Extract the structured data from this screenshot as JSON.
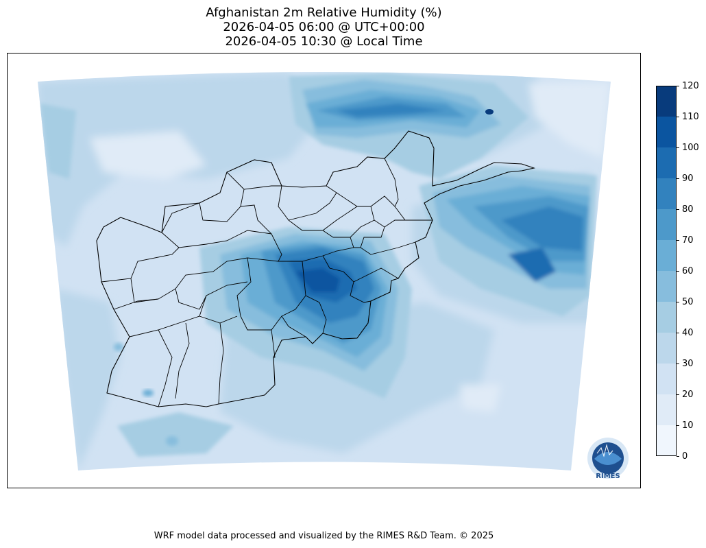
{
  "title": {
    "line1": "Afghanistan 2m Relative Humidity (%)",
    "line2": "2026-04-05 06:00 @ UTC+00:00",
    "line3": "2026-04-05 10:30 @ Local Time"
  },
  "map": {
    "region": "Afghanistan",
    "variable": "2m Relative Humidity",
    "unit": "%",
    "colormap": "Blues",
    "features": [
      "province-boundaries",
      "filled-humidity-contours"
    ]
  },
  "colorbar": {
    "min": 0,
    "max": 120,
    "ticks": [
      "0",
      "10",
      "20",
      "30",
      "40",
      "50",
      "60",
      "70",
      "80",
      "90",
      "100",
      "110",
      "120"
    ],
    "colors": [
      "#f0f6fd",
      "#e0ebf7",
      "#d1e2f3",
      "#bcd7eb",
      "#a6cde3",
      "#87bddd",
      "#6aaed6",
      "#4d99ca",
      "#3282be",
      "#1c6cb1",
      "#0b55a0",
      "#083b7c"
    ]
  },
  "logo": {
    "icon": "rimes-logo",
    "text": "RIMES",
    "ring_text": "Regional Integrated Multi-Hazard Early Warning System"
  },
  "footer": {
    "text": "WRF model data processed and visualized by the RIMES R&D Team. © 2025"
  }
}
